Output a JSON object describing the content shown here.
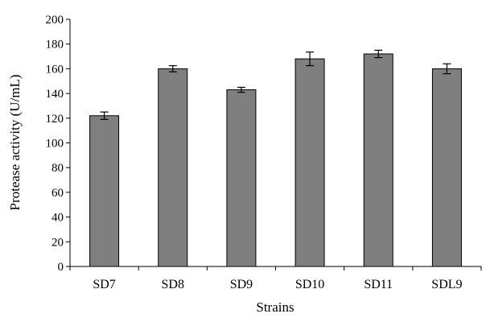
{
  "chart_data": {
    "type": "bar",
    "title": "",
    "xlabel": "Strains",
    "ylabel": "Protease activity (U/mL)",
    "ylim": [
      0,
      200
    ],
    "yticks": [
      0,
      20,
      40,
      60,
      80,
      100,
      120,
      140,
      160,
      180,
      200
    ],
    "categories": [
      "SD7",
      "SD8",
      "SD9",
      "SD10",
      "SD11",
      "SDL9"
    ],
    "values": [
      122,
      160,
      143,
      168,
      172,
      160
    ],
    "errors": [
      3,
      2.5,
      2,
      5.5,
      3,
      4
    ],
    "bar_color": "#7f7f7f",
    "grid": false,
    "legend": "none"
  }
}
